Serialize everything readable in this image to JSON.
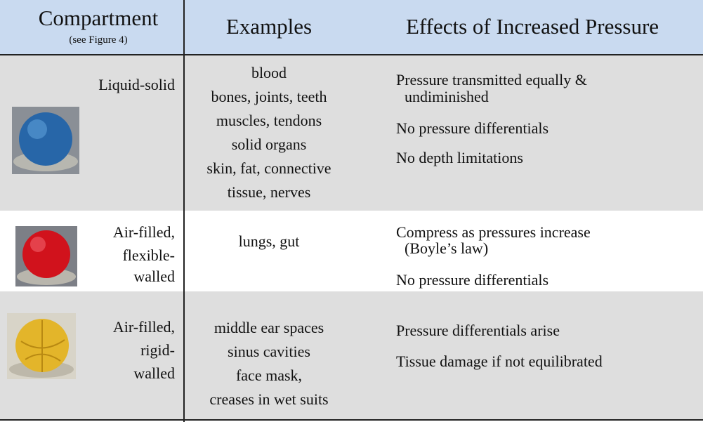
{
  "header": {
    "compartment": "Compartment",
    "compartment_note": "(see Figure 4)",
    "examples": "Examples",
    "effects": "Effects of Increased Pressure"
  },
  "rows": [
    {
      "compartment": [
        "Liquid-solid"
      ],
      "examples": [
        "blood",
        "bones, joints, teeth",
        "muscles, tendons",
        "solid organs",
        "skin, fat, connective",
        "tissue, nerves"
      ],
      "effects": [
        [
          "Pressure transmitted equally &",
          "undiminished"
        ],
        [
          "No pressure differentials"
        ],
        [
          "No depth limitations"
        ]
      ]
    },
    {
      "compartment": [
        "Air-filled,",
        "flexible-",
        "walled"
      ],
      "examples": [
        "lungs, gut"
      ],
      "effects": [
        [
          "Compress as pressures increase",
          "(Boyle’s law)"
        ],
        [
          "No pressure differentials"
        ]
      ]
    },
    {
      "compartment": [
        "Air-filled,",
        "rigid-",
        "walled"
      ],
      "examples": [
        "middle ear spaces",
        "sinus cavities",
        "face mask,",
        "creases in wet suits"
      ],
      "effects": [
        [
          "Pressure differentials arise"
        ],
        [
          "Tissue damage if not equilibrated"
        ]
      ]
    }
  ]
}
